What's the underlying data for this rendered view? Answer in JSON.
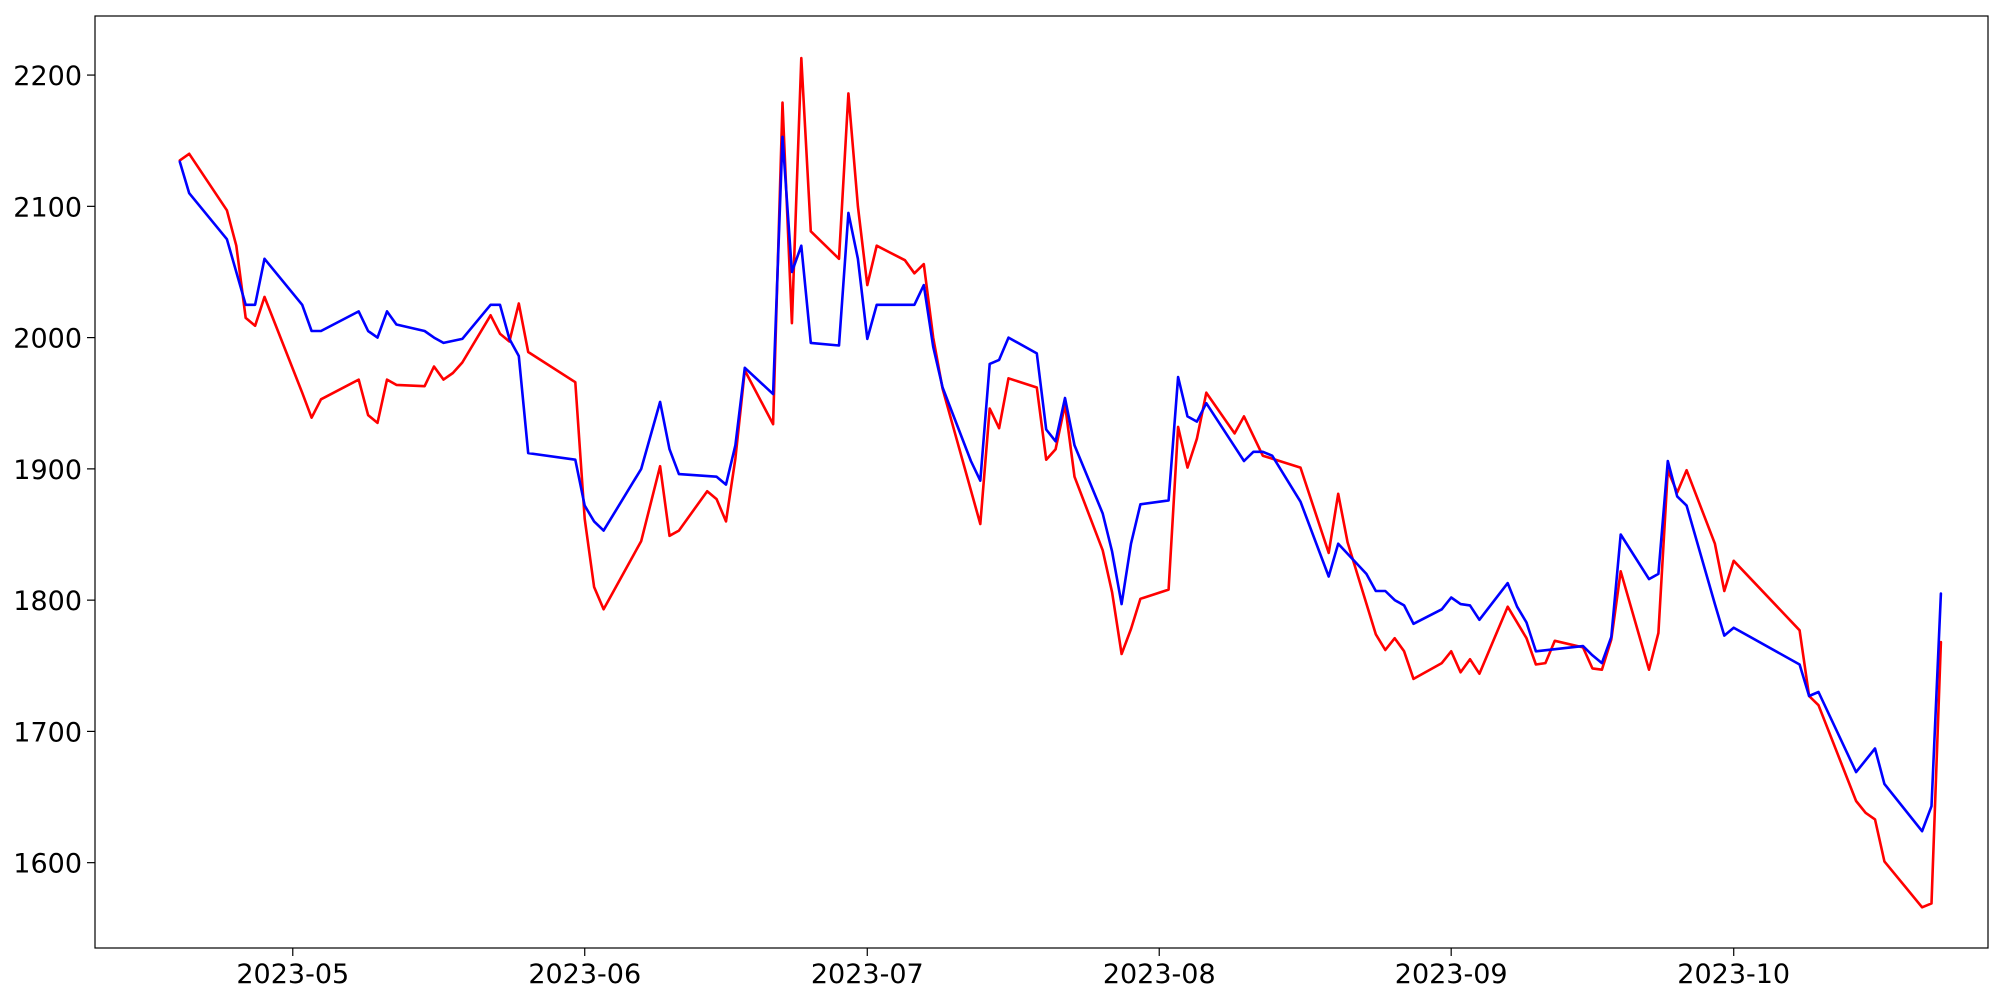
{
  "chart_data": {
    "type": "line",
    "title": "",
    "xlabel": "",
    "ylabel": "",
    "x_range": [
      "2023-04-10",
      "2023-10-28"
    ],
    "ylim": [
      1535,
      2245
    ],
    "grid": false,
    "legend": "none",
    "x_ticks": [
      {
        "date": "2023-05-01",
        "label": "2023-05"
      },
      {
        "date": "2023-06-01",
        "label": "2023-06"
      },
      {
        "date": "2023-07-01",
        "label": "2023-07"
      },
      {
        "date": "2023-08-01",
        "label": "2023-08"
      },
      {
        "date": "2023-09-01",
        "label": "2023-09"
      },
      {
        "date": "2023-10-01",
        "label": "2023-10"
      }
    ],
    "y_ticks": [
      1600,
      1700,
      1800,
      1900,
      2000,
      2100,
      2200
    ],
    "series": [
      {
        "color": "#ff0000",
        "points": [
          [
            "2023-04-19",
            2135
          ],
          [
            "2023-04-20",
            2140
          ],
          [
            "2023-04-24",
            2097
          ],
          [
            "2023-04-25",
            2070
          ],
          [
            "2023-04-26",
            2015
          ],
          [
            "2023-04-27",
            2009
          ],
          [
            "2023-04-28",
            2031
          ],
          [
            "2023-05-02",
            1958
          ],
          [
            "2023-05-03",
            1939
          ],
          [
            "2023-05-04",
            1953
          ],
          [
            "2023-05-08",
            1968
          ],
          [
            "2023-05-09",
            1941
          ],
          [
            "2023-05-10",
            1935
          ],
          [
            "2023-05-11",
            1968
          ],
          [
            "2023-05-12",
            1964
          ],
          [
            "2023-05-15",
            1963
          ],
          [
            "2023-05-16",
            1978
          ],
          [
            "2023-05-17",
            1968
          ],
          [
            "2023-05-18",
            1973
          ],
          [
            "2023-05-19",
            1981
          ],
          [
            "2023-05-22",
            2017
          ],
          [
            "2023-05-23",
            2003
          ],
          [
            "2023-05-24",
            1997
          ],
          [
            "2023-05-25",
            2026
          ],
          [
            "2023-05-26",
            1989
          ],
          [
            "2023-05-31",
            1966
          ],
          [
            "2023-06-01",
            1862
          ],
          [
            "2023-06-02",
            1810
          ],
          [
            "2023-06-03",
            1793
          ],
          [
            "2023-06-07",
            1845
          ],
          [
            "2023-06-09",
            1902
          ],
          [
            "2023-06-10",
            1849
          ],
          [
            "2023-06-11",
            1853
          ],
          [
            "2023-06-14",
            1883
          ],
          [
            "2023-06-15",
            1877
          ],
          [
            "2023-06-16",
            1860
          ],
          [
            "2023-06-17",
            1908
          ],
          [
            "2023-06-18",
            1975
          ],
          [
            "2023-06-21",
            1934
          ],
          [
            "2023-06-22",
            2179
          ],
          [
            "2023-06-23",
            2011
          ],
          [
            "2023-06-24",
            2213
          ],
          [
            "2023-06-25",
            2081
          ],
          [
            "2023-06-28",
            2060
          ],
          [
            "2023-06-29",
            2186
          ],
          [
            "2023-06-30",
            2100
          ],
          [
            "2023-07-01",
            2040
          ],
          [
            "2023-07-02",
            2070
          ],
          [
            "2023-07-05",
            2059
          ],
          [
            "2023-07-06",
            2049
          ],
          [
            "2023-07-07",
            2056
          ],
          [
            "2023-07-08",
            2000
          ],
          [
            "2023-07-09",
            1961
          ],
          [
            "2023-07-13",
            1858
          ],
          [
            "2023-07-14",
            1946
          ],
          [
            "2023-07-15",
            1931
          ],
          [
            "2023-07-16",
            1969
          ],
          [
            "2023-07-19",
            1962
          ],
          [
            "2023-07-20",
            1907
          ],
          [
            "2023-07-21",
            1915
          ],
          [
            "2023-07-22",
            1949
          ],
          [
            "2023-07-23",
            1894
          ],
          [
            "2023-07-26",
            1838
          ],
          [
            "2023-07-27",
            1806
          ],
          [
            "2023-07-28",
            1759
          ],
          [
            "2023-07-29",
            1778
          ],
          [
            "2023-07-30",
            1801
          ],
          [
            "2023-08-02",
            1808
          ],
          [
            "2023-08-03",
            1932
          ],
          [
            "2023-08-04",
            1901
          ],
          [
            "2023-08-05",
            1923
          ],
          [
            "2023-08-06",
            1958
          ],
          [
            "2023-08-09",
            1927
          ],
          [
            "2023-08-10",
            1940
          ],
          [
            "2023-08-11",
            1925
          ],
          [
            "2023-08-12",
            1910
          ],
          [
            "2023-08-16",
            1901
          ],
          [
            "2023-08-19",
            1836
          ],
          [
            "2023-08-20",
            1881
          ],
          [
            "2023-08-21",
            1844
          ],
          [
            "2023-08-24",
            1774
          ],
          [
            "2023-08-25",
            1762
          ],
          [
            "2023-08-26",
            1771
          ],
          [
            "2023-08-27",
            1761
          ],
          [
            "2023-08-28",
            1740
          ],
          [
            "2023-08-31",
            1752
          ],
          [
            "2023-09-01",
            1761
          ],
          [
            "2023-09-02",
            1745
          ],
          [
            "2023-09-03",
            1755
          ],
          [
            "2023-09-04",
            1744
          ],
          [
            "2023-09-07",
            1795
          ],
          [
            "2023-09-09",
            1771
          ],
          [
            "2023-09-10",
            1751
          ],
          [
            "2023-09-11",
            1752
          ],
          [
            "2023-09-12",
            1769
          ],
          [
            "2023-09-15",
            1764
          ],
          [
            "2023-09-16",
            1748
          ],
          [
            "2023-09-17",
            1747
          ],
          [
            "2023-09-18",
            1770
          ],
          [
            "2023-09-19",
            1822
          ],
          [
            "2023-09-22",
            1747
          ],
          [
            "2023-09-23",
            1775
          ],
          [
            "2023-09-24",
            1899
          ],
          [
            "2023-09-25",
            1882
          ],
          [
            "2023-09-26",
            1899
          ],
          [
            "2023-09-29",
            1843
          ],
          [
            "2023-09-30",
            1807
          ],
          [
            "2023-10-01",
            1830
          ],
          [
            "2023-10-08",
            1777
          ],
          [
            "2023-10-09",
            1727
          ],
          [
            "2023-10-10",
            1720
          ],
          [
            "2023-10-14",
            1647
          ],
          [
            "2023-10-15",
            1638
          ],
          [
            "2023-10-16",
            1633
          ],
          [
            "2023-10-17",
            1601
          ],
          [
            "2023-10-21",
            1566
          ],
          [
            "2023-10-22",
            1569
          ],
          [
            "2023-10-23",
            1768
          ]
        ]
      },
      {
        "color": "#0000ff",
        "points": [
          [
            "2023-04-19",
            2134
          ],
          [
            "2023-04-20",
            2110
          ],
          [
            "2023-04-24",
            2075
          ],
          [
            "2023-04-26",
            2025
          ],
          [
            "2023-04-27",
            2025
          ],
          [
            "2023-04-28",
            2060
          ],
          [
            "2023-05-02",
            2025
          ],
          [
            "2023-05-03",
            2005
          ],
          [
            "2023-05-04",
            2005
          ],
          [
            "2023-05-08",
            2020
          ],
          [
            "2023-05-09",
            2005
          ],
          [
            "2023-05-10",
            2000
          ],
          [
            "2023-05-11",
            2020
          ],
          [
            "2023-05-12",
            2010
          ],
          [
            "2023-05-15",
            2005
          ],
          [
            "2023-05-16",
            2000
          ],
          [
            "2023-05-17",
            1996
          ],
          [
            "2023-05-19",
            1999
          ],
          [
            "2023-05-22",
            2025
          ],
          [
            "2023-05-23",
            2025
          ],
          [
            "2023-05-24",
            1999
          ],
          [
            "2023-05-25",
            1986
          ],
          [
            "2023-05-26",
            1912
          ],
          [
            "2023-05-31",
            1907
          ],
          [
            "2023-06-01",
            1872
          ],
          [
            "2023-06-02",
            1860
          ],
          [
            "2023-06-03",
            1853
          ],
          [
            "2023-06-07",
            1900
          ],
          [
            "2023-06-09",
            1951
          ],
          [
            "2023-06-10",
            1915
          ],
          [
            "2023-06-11",
            1896
          ],
          [
            "2023-06-15",
            1894
          ],
          [
            "2023-06-16",
            1888
          ],
          [
            "2023-06-17",
            1918
          ],
          [
            "2023-06-18",
            1977
          ],
          [
            "2023-06-21",
            1957
          ],
          [
            "2023-06-22",
            2153
          ],
          [
            "2023-06-23",
            2050
          ],
          [
            "2023-06-24",
            2070
          ],
          [
            "2023-06-25",
            1996
          ],
          [
            "2023-06-28",
            1994
          ],
          [
            "2023-06-29",
            2095
          ],
          [
            "2023-06-30",
            2060
          ],
          [
            "2023-07-01",
            1999
          ],
          [
            "2023-07-02",
            2025
          ],
          [
            "2023-07-06",
            2025
          ],
          [
            "2023-07-07",
            2040
          ],
          [
            "2023-07-08",
            1993
          ],
          [
            "2023-07-09",
            1962
          ],
          [
            "2023-07-12",
            1906
          ],
          [
            "2023-07-13",
            1891
          ],
          [
            "2023-07-14",
            1980
          ],
          [
            "2023-07-15",
            1983
          ],
          [
            "2023-07-16",
            2000
          ],
          [
            "2023-07-19",
            1988
          ],
          [
            "2023-07-20",
            1930
          ],
          [
            "2023-07-21",
            1921
          ],
          [
            "2023-07-22",
            1954
          ],
          [
            "2023-07-23",
            1918
          ],
          [
            "2023-07-26",
            1866
          ],
          [
            "2023-07-27",
            1837
          ],
          [
            "2023-07-28",
            1797
          ],
          [
            "2023-07-29",
            1843
          ],
          [
            "2023-07-30",
            1873
          ],
          [
            "2023-08-02",
            1876
          ],
          [
            "2023-08-03",
            1970
          ],
          [
            "2023-08-04",
            1940
          ],
          [
            "2023-08-05",
            1936
          ],
          [
            "2023-08-06",
            1950
          ],
          [
            "2023-08-09",
            1917
          ],
          [
            "2023-08-10",
            1906
          ],
          [
            "2023-08-11",
            1913
          ],
          [
            "2023-08-12",
            1913
          ],
          [
            "2023-08-13",
            1910
          ],
          [
            "2023-08-16",
            1875
          ],
          [
            "2023-08-19",
            1818
          ],
          [
            "2023-08-20",
            1843
          ],
          [
            "2023-08-23",
            1820
          ],
          [
            "2023-08-24",
            1807
          ],
          [
            "2023-08-25",
            1807
          ],
          [
            "2023-08-26",
            1800
          ],
          [
            "2023-08-27",
            1796
          ],
          [
            "2023-08-28",
            1782
          ],
          [
            "2023-08-31",
            1793
          ],
          [
            "2023-09-01",
            1802
          ],
          [
            "2023-09-02",
            1797
          ],
          [
            "2023-09-03",
            1796
          ],
          [
            "2023-09-04",
            1785
          ],
          [
            "2023-09-07",
            1813
          ],
          [
            "2023-09-08",
            1795
          ],
          [
            "2023-09-09",
            1783
          ],
          [
            "2023-09-10",
            1761
          ],
          [
            "2023-09-15",
            1765
          ],
          [
            "2023-09-16",
            1758
          ],
          [
            "2023-09-17",
            1752
          ],
          [
            "2023-09-18",
            1772
          ],
          [
            "2023-09-19",
            1850
          ],
          [
            "2023-09-22",
            1816
          ],
          [
            "2023-09-23",
            1820
          ],
          [
            "2023-09-24",
            1906
          ],
          [
            "2023-09-25",
            1879
          ],
          [
            "2023-09-26",
            1872
          ],
          [
            "2023-09-29",
            1797
          ],
          [
            "2023-09-30",
            1773
          ],
          [
            "2023-10-01",
            1779
          ],
          [
            "2023-10-08",
            1751
          ],
          [
            "2023-10-09",
            1727
          ],
          [
            "2023-10-10",
            1730
          ],
          [
            "2023-10-14",
            1669
          ],
          [
            "2023-10-16",
            1687
          ],
          [
            "2023-10-17",
            1660
          ],
          [
            "2023-10-21",
            1624
          ],
          [
            "2023-10-22",
            1643
          ],
          [
            "2023-10-23",
            1805
          ]
        ]
      }
    ]
  }
}
